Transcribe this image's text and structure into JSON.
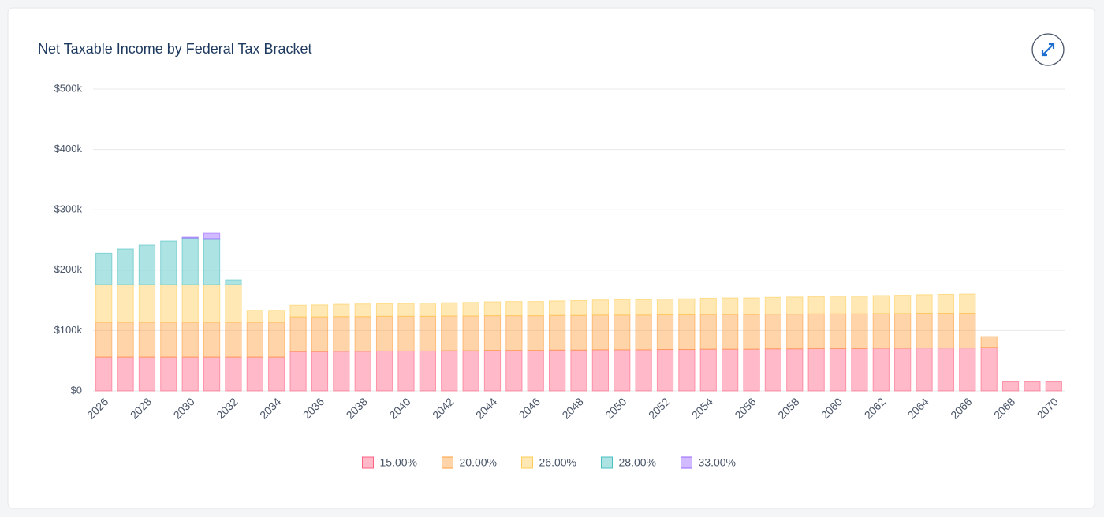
{
  "chart_data": {
    "type": "stacked_bar",
    "title": "Net Taxable Income by Federal Tax Bracket",
    "categories": [
      "2026",
      null,
      "2028",
      null,
      "2030",
      null,
      "2032",
      null,
      "2034",
      null,
      "2036",
      null,
      "2038",
      null,
      "2040",
      null,
      "2042",
      null,
      "2044",
      null,
      "2046",
      null,
      "2048",
      null,
      "2050",
      null,
      "2052",
      null,
      "2054",
      null,
      "2056",
      null,
      "2058",
      null,
      "2060",
      null,
      "2062",
      null,
      "2064",
      null,
      "2066",
      null,
      "2068",
      null,
      "2070"
    ],
    "ylim": [
      0,
      500000
    ],
    "yticks": [
      {
        "value": 0,
        "label": "$0"
      },
      {
        "value": 100000,
        "label": "$100k"
      },
      {
        "value": 200000,
        "label": "$200k"
      },
      {
        "value": 300000,
        "label": "$300k"
      },
      {
        "value": 400000,
        "label": "$400k"
      },
      {
        "value": 500000,
        "label": "$500k"
      }
    ],
    "grid": true,
    "legend": "bottom",
    "series": [
      {
        "name": "15.00%",
        "color": "#ff6384",
        "values": [
          56000,
          56000,
          56000,
          56000,
          56000,
          56000,
          56000,
          56000,
          56000,
          65000,
          65000,
          65500,
          65500,
          66000,
          66000,
          66000,
          66500,
          66500,
          67000,
          67000,
          67000,
          67500,
          67500,
          68000,
          68000,
          68000,
          68500,
          68500,
          69000,
          69000,
          69000,
          69500,
          69500,
          70000,
          70000,
          70000,
          70500,
          70500,
          71000,
          71000,
          71000,
          72000,
          15000,
          15000,
          15000
        ]
      },
      {
        "name": "20.00%",
        "color": "#ff9f40",
        "values": [
          57500,
          57500,
          57500,
          57500,
          57500,
          57500,
          57500,
          57500,
          57500,
          57500,
          57500,
          57500,
          57500,
          57500,
          57500,
          57500,
          57500,
          57500,
          57500,
          57500,
          57500,
          57500,
          57500,
          57500,
          57500,
          57500,
          57500,
          57500,
          57500,
          57500,
          57500,
          57500,
          57500,
          57500,
          57500,
          57500,
          57500,
          57500,
          57500,
          57500,
          57500,
          18000,
          0,
          0,
          0
        ]
      },
      {
        "name": "26.00%",
        "color": "#ffcd56",
        "values": [
          62500,
          62500,
          62500,
          62500,
          62500,
          62500,
          62500,
          20000,
          20000,
          19500,
          20000,
          20500,
          21000,
          21000,
          21500,
          22000,
          22000,
          22500,
          23000,
          23500,
          23500,
          24000,
          24500,
          25000,
          25500,
          25500,
          26000,
          26500,
          27000,
          27500,
          27500,
          28000,
          28500,
          29000,
          29500,
          29500,
          30000,
          30500,
          31000,
          31500,
          32000,
          0,
          0,
          0,
          0
        ]
      },
      {
        "name": "28.00%",
        "color": "#4bc0c0",
        "values": [
          52000,
          59000,
          65500,
          72000,
          77000,
          76000,
          8000,
          0,
          0,
          0,
          0,
          0,
          0,
          0,
          0,
          0,
          0,
          0,
          0,
          0,
          0,
          0,
          0,
          0,
          0,
          0,
          0,
          0,
          0,
          0,
          0,
          0,
          0,
          0,
          0,
          0,
          0,
          0,
          0,
          0,
          0,
          0,
          0,
          0,
          0
        ]
      },
      {
        "name": "33.00%",
        "color": "#9966ff",
        "values": [
          0,
          0,
          0,
          0,
          1500,
          9000,
          0,
          0,
          0,
          0,
          0,
          0,
          0,
          0,
          0,
          0,
          0,
          0,
          0,
          0,
          0,
          0,
          0,
          0,
          0,
          0,
          0,
          0,
          0,
          0,
          0,
          0,
          0,
          0,
          0,
          0,
          0,
          0,
          0,
          0,
          0,
          0,
          0,
          0,
          0
        ]
      }
    ]
  }
}
